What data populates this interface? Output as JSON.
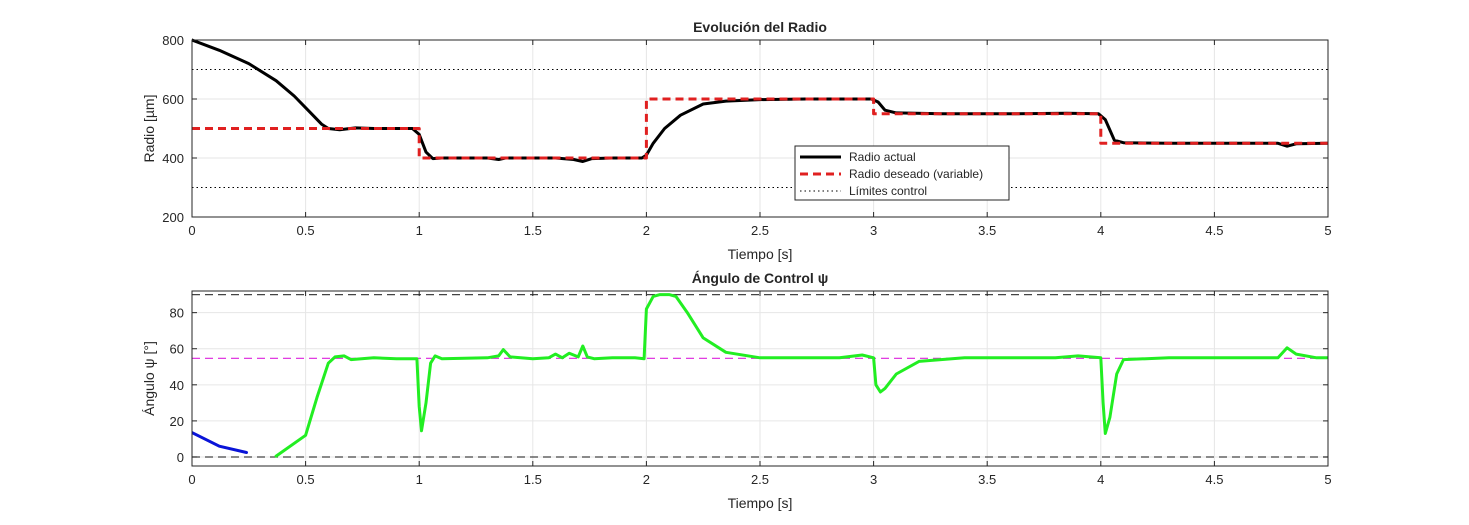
{
  "chart_data": [
    {
      "type": "line",
      "title": "Evolución del Radio",
      "xlabel": "Tiempo [s]",
      "ylabel": "Radio [µm]",
      "xlim": [
        0,
        5
      ],
      "ylim": [
        200,
        800
      ],
      "xticks": [
        0,
        0.5,
        1,
        1.5,
        2,
        2.5,
        3,
        3.5,
        4,
        4.5,
        5
      ],
      "xtick_labels": [
        "0",
        "0.5",
        "1",
        "1.5",
        "2",
        "2.5",
        "3",
        "3.5",
        "4",
        "4.5",
        "5"
      ],
      "yticks": [
        200,
        400,
        600,
        800
      ],
      "ytick_labels": [
        "200",
        "400",
        "600",
        "800"
      ],
      "grid": true,
      "legend_position": "center-right",
      "series": [
        {
          "name": "Radio actual",
          "color": "#000000",
          "style": "solid",
          "x": [
            0,
            0.12,
            0.25,
            0.37,
            0.45,
            0.52,
            0.57,
            0.6,
            0.65,
            0.72,
            0.8,
            0.9,
            0.97,
            1.0,
            1.03,
            1.06,
            1.1,
            1.3,
            1.35,
            1.38,
            1.45,
            1.6,
            1.68,
            1.72,
            1.76,
            1.85,
            1.98,
            2.0,
            2.03,
            2.08,
            2.15,
            2.25,
            2.35,
            2.5,
            2.7,
            2.9,
            2.99,
            3.02,
            3.05,
            3.1,
            3.3,
            3.6,
            3.85,
            3.99,
            4.02,
            4.06,
            4.1,
            4.3,
            4.6,
            4.78,
            4.82,
            4.86,
            5.0
          ],
          "values": [
            800,
            765,
            720,
            662,
            610,
            555,
            515,
            500,
            496,
            502,
            500,
            500,
            500,
            480,
            420,
            398,
            400,
            400,
            395,
            400,
            400,
            400,
            395,
            388,
            398,
            400,
            400,
            410,
            450,
            500,
            545,
            583,
            593,
            598,
            600,
            600,
            600,
            590,
            562,
            553,
            550,
            550,
            552,
            550,
            530,
            460,
            452,
            450,
            450,
            450,
            440,
            448,
            450
          ]
        },
        {
          "name": "Radio deseado (variable)",
          "color": "#e02020",
          "style": "dashed",
          "x": [
            0,
            1.0,
            1.0,
            2.0,
            2.0,
            3.0,
            3.0,
            4.0,
            4.0,
            5.0
          ],
          "values": [
            500,
            500,
            400,
            400,
            600,
            600,
            550,
            550,
            450,
            450
          ]
        },
        {
          "name": "Límites control",
          "color": "#000000",
          "style": "dotted",
          "x": [
            0,
            5
          ],
          "values": [
            700,
            700
          ]
        },
        {
          "name": "",
          "color": "#000000",
          "style": "dotted",
          "x": [
            0,
            5
          ],
          "values": [
            300,
            300
          ]
        }
      ]
    },
    {
      "type": "line",
      "title": "Ángulo de Control ψ",
      "xlabel": "Tiempo [s]",
      "ylabel": "Ángulo ψ [°]",
      "xlim": [
        0,
        5
      ],
      "ylim": [
        -5,
        92
      ],
      "xticks": [
        0,
        0.5,
        1,
        1.5,
        2,
        2.5,
        3,
        3.5,
        4,
        4.5,
        5
      ],
      "xtick_labels": [
        "0",
        "0.5",
        "1",
        "1.5",
        "2",
        "2.5",
        "3",
        "3.5",
        "4",
        "4.5",
        "5"
      ],
      "yticks": [
        0,
        20,
        40,
        60,
        80
      ],
      "ytick_labels": [
        "0",
        "20",
        "40",
        "60",
        "80"
      ],
      "grid": true,
      "series": [
        {
          "name": "",
          "color": "#0a14d8",
          "style": "solid",
          "x": [
            0,
            0.12,
            0.24
          ],
          "values": [
            13.5,
            6,
            2.5
          ]
        },
        {
          "name": "",
          "color": "#22ee22",
          "style": "solid",
          "x": [
            0.37,
            0.5,
            0.55,
            0.6,
            0.63,
            0.67,
            0.7,
            0.8,
            0.9,
            0.99,
            1.0,
            1.01,
            1.03,
            1.05,
            1.07,
            1.1,
            1.3,
            1.35,
            1.37,
            1.4,
            1.5,
            1.57,
            1.6,
            1.63,
            1.66,
            1.7,
            1.72,
            1.74,
            1.77,
            1.85,
            1.95,
            1.99,
            2.0,
            2.03,
            2.06,
            2.1,
            2.13,
            2.18,
            2.25,
            2.35,
            2.5,
            2.7,
            2.85,
            2.95,
            3.0,
            3.01,
            3.03,
            3.05,
            3.1,
            3.2,
            3.4,
            3.6,
            3.8,
            3.9,
            4.0,
            4.01,
            4.02,
            4.04,
            4.07,
            4.1,
            4.3,
            4.6,
            4.78,
            4.82,
            4.86,
            4.95,
            5.0
          ],
          "values": [
            0.5,
            12,
            33,
            52,
            55.5,
            56,
            54,
            55,
            54.5,
            54.5,
            28,
            14.5,
            30,
            52,
            56,
            54.5,
            55,
            56,
            59.5,
            55.5,
            54.5,
            55,
            57,
            55,
            57.5,
            55.5,
            61.5,
            55.5,
            54.5,
            55,
            55,
            54.5,
            82,
            89,
            90,
            90,
            89,
            80,
            66,
            58,
            55,
            55,
            55,
            56.5,
            55,
            40,
            36,
            38,
            46,
            53,
            55,
            55,
            55,
            56,
            55,
            30,
            13,
            22,
            46,
            54,
            55,
            55,
            55,
            60.5,
            57,
            55,
            55
          ]
        },
        {
          "name": "",
          "color": "#444444",
          "style": "dashed",
          "x": [
            0,
            5
          ],
          "values": [
            90,
            90
          ]
        },
        {
          "name": "",
          "color": "#444444",
          "style": "dashed",
          "x": [
            0,
            5
          ],
          "values": [
            0,
            0
          ]
        },
        {
          "name": "",
          "color": "#dd22dd",
          "style": "dashed",
          "x": [
            0,
            5
          ],
          "values": [
            54.7,
            54.7
          ]
        }
      ]
    }
  ]
}
